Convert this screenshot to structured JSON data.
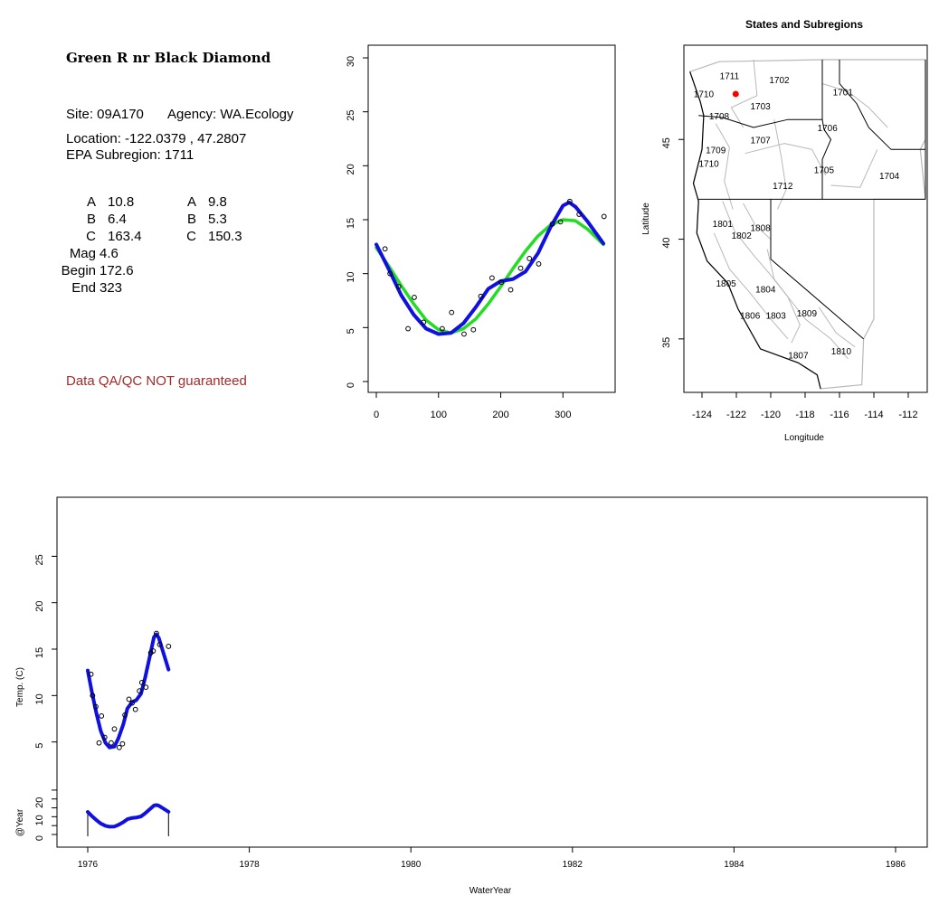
{
  "site": {
    "name": "Green R nr Black Diamond",
    "site_line": "Site: 09A170",
    "agency_line": "Agency: WA.Ecology",
    "location_line": "Location: -122.0379 , 47.2807",
    "subregion_line": "EPA Subregion: 1711",
    "qa_note": "Data QA/QC NOT guaranteed"
  },
  "params": {
    "left": [
      {
        "label": "A",
        "value": "10.8"
      },
      {
        "label": "B",
        "value": "6.4"
      },
      {
        "label": "C",
        "value": "163.4"
      },
      {
        "label": "Mag",
        "value": "4.6"
      },
      {
        "label": "Begin",
        "value": "172.6"
      },
      {
        "label": "End",
        "value": "323"
      }
    ],
    "right": [
      {
        "label": "A",
        "value": "9.8"
      },
      {
        "label": "B",
        "value": "5.3"
      },
      {
        "label": "C",
        "value": "150.3"
      }
    ]
  },
  "colors": {
    "fit_blue": "#1010e0",
    "fit_green": "#22dd22",
    "site_marker": "#ff0000",
    "qa_text": "#a52a2a"
  },
  "chart_data": [
    {
      "type": "scatter",
      "title": "",
      "xlabel": "",
      "ylabel": "",
      "xlim": [
        0,
        365
      ],
      "ylim": [
        0,
        30
      ],
      "xticks": [
        0,
        100,
        200,
        300
      ],
      "yticks": [
        0,
        5,
        10,
        15,
        20,
        25,
        30
      ],
      "points": {
        "x": [
          14,
          22,
          36,
          51,
          61,
          76,
          106,
          121,
          141,
          156,
          168,
          186,
          201,
          216,
          232,
          246,
          261,
          283,
          296,
          311,
          326,
          366
        ],
        "y": [
          12.3,
          10.0,
          8.8,
          4.9,
          7.8,
          5.5,
          4.9,
          6.4,
          4.4,
          4.8,
          7.9,
          9.6,
          9.2,
          8.5,
          10.5,
          11.4,
          10.9,
          14.6,
          14.8,
          16.7,
          15.5,
          15.3
        ]
      },
      "series": [
        {
          "color": "#1010e0",
          "x": [
            0,
            20,
            40,
            60,
            80,
            100,
            120,
            140,
            160,
            180,
            200,
            220,
            240,
            260,
            280,
            300,
            310,
            320,
            340,
            365
          ],
          "y": [
            12.7,
            10.4,
            8.0,
            6.2,
            4.9,
            4.4,
            4.5,
            5.4,
            6.9,
            8.6,
            9.3,
            9.5,
            10.2,
            11.9,
            14.3,
            16.3,
            16.6,
            16.2,
            14.8,
            12.8
          ]
        },
        {
          "color": "#22dd22",
          "x": [
            0,
            20,
            40,
            60,
            80,
            100,
            120,
            140,
            160,
            180,
            200,
            220,
            240,
            260,
            280,
            300,
            320,
            340,
            365
          ],
          "y": [
            12.4,
            10.7,
            8.9,
            7.2,
            5.7,
            4.8,
            4.5,
            4.9,
            5.8,
            7.2,
            8.8,
            10.5,
            12.1,
            13.5,
            14.5,
            15.0,
            14.9,
            14.1,
            12.7
          ]
        }
      ]
    },
    {
      "type": "map",
      "title": "States and Subregions",
      "xlabel": "Longitude",
      "ylabel": "Latitude",
      "xlim": [
        -125,
        -111
      ],
      "ylim": [
        32.5,
        49.5
      ],
      "xticks": [
        -124,
        -122,
        -120,
        -118,
        -116,
        -114,
        -112
      ],
      "yticks": [
        35,
        40,
        45
      ],
      "regions": [
        {
          "label": "1711",
          "lon": -122.4,
          "lat": 48.2
        },
        {
          "label": "1702",
          "lon": -119.5,
          "lat": 48.0
        },
        {
          "label": "1701",
          "lon": -115.8,
          "lat": 47.4
        },
        {
          "label": "1710",
          "lon": -123.9,
          "lat": 47.3
        },
        {
          "label": "1703",
          "lon": -120.6,
          "lat": 46.7
        },
        {
          "label": "1708",
          "lon": -123.0,
          "lat": 46.2
        },
        {
          "label": "1706",
          "lon": -116.7,
          "lat": 45.6
        },
        {
          "label": "1707",
          "lon": -120.6,
          "lat": 45.0
        },
        {
          "label": "1709",
          "lon": -123.2,
          "lat": 44.5
        },
        {
          "label": "1710",
          "lon": -123.6,
          "lat": 43.8
        },
        {
          "label": "1705",
          "lon": -116.9,
          "lat": 43.5
        },
        {
          "label": "1704",
          "lon": -113.1,
          "lat": 43.2
        },
        {
          "label": "1712",
          "lon": -119.3,
          "lat": 42.7
        },
        {
          "label": "1801",
          "lon": -122.8,
          "lat": 40.8
        },
        {
          "label": "1808",
          "lon": -120.6,
          "lat": 40.6
        },
        {
          "label": "1802",
          "lon": -121.7,
          "lat": 40.2
        },
        {
          "label": "1805",
          "lon": -122.6,
          "lat": 37.8
        },
        {
          "label": "1804",
          "lon": -120.3,
          "lat": 37.5
        },
        {
          "label": "1809",
          "lon": -117.9,
          "lat": 36.3
        },
        {
          "label": "1806",
          "lon": -121.2,
          "lat": 36.2
        },
        {
          "label": "1803",
          "lon": -119.7,
          "lat": 36.2
        },
        {
          "label": "1810",
          "lon": -115.9,
          "lat": 34.4
        },
        {
          "label": "1807",
          "lon": -118.4,
          "lat": 34.2
        }
      ],
      "site": {
        "lon": -122.0379,
        "lat": 47.2807
      }
    },
    {
      "type": "line",
      "title": "",
      "xlabel": "WaterYear",
      "ylabel": "Temp. (C)",
      "xlim": [
        1976,
        1986.5
      ],
      "ylim": [
        0,
        30
      ],
      "xticks": [
        1976,
        1978,
        1980,
        1982,
        1984,
        1986
      ],
      "yticks": [
        5,
        10,
        15,
        20,
        25
      ],
      "points": {
        "x": [
          1976.04,
          1976.06,
          1976.1,
          1976.14,
          1976.17,
          1976.21,
          1976.29,
          1976.33,
          1976.39,
          1976.43,
          1976.46,
          1976.51,
          1976.55,
          1976.59,
          1976.64,
          1976.67,
          1976.72,
          1976.78,
          1976.81,
          1976.85,
          1976.89,
          1977.0
        ],
        "y": [
          12.3,
          10.0,
          8.8,
          4.9,
          7.8,
          5.5,
          4.9,
          6.4,
          4.4,
          4.8,
          7.9,
          9.6,
          9.2,
          8.5,
          10.5,
          11.4,
          10.9,
          14.6,
          14.8,
          16.7,
          15.5,
          15.3
        ]
      },
      "series": [
        {
          "color": "#1010e0",
          "x": [
            1976.0,
            1976.05,
            1976.11,
            1976.16,
            1976.22,
            1976.27,
            1976.33,
            1976.38,
            1976.44,
            1976.49,
            1976.55,
            1976.6,
            1976.66,
            1976.71,
            1976.77,
            1976.82,
            1976.85,
            1976.88,
            1976.93,
            1977.0
          ],
          "y": [
            12.7,
            10.4,
            8.0,
            6.2,
            4.9,
            4.4,
            4.5,
            5.4,
            6.9,
            8.6,
            9.3,
            9.5,
            10.2,
            11.9,
            14.3,
            16.3,
            16.6,
            16.2,
            14.8,
            12.8
          ]
        }
      ],
      "sub_panel": {
        "ylabel": "@Year",
        "ylim": [
          -3,
          28
        ],
        "yticks": [
          0,
          5,
          10,
          15,
          20,
          25
        ],
        "ytick_labels": [
          "0",
          "",
          "10",
          "",
          "20",
          ""
        ]
      }
    }
  ]
}
